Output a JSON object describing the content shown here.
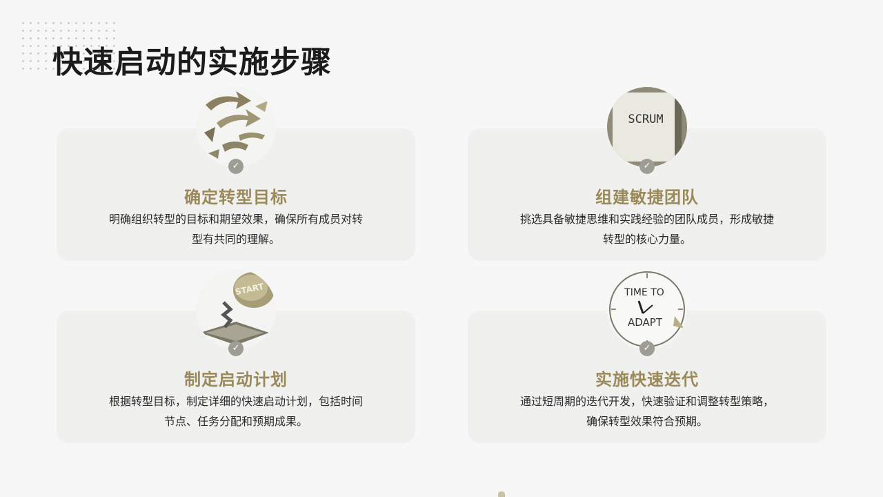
{
  "page": {
    "title": "快速启动的实施步骤"
  },
  "steps": [
    {
      "icon": "arrows-photo-icon",
      "title": "确定转型目标",
      "desc_line1": "明确组织转型的目标和期望效果，确保所有成员对转",
      "desc_line2": "型有共同的理解。"
    },
    {
      "icon": "scrum-note-photo-icon",
      "photo_text": "SCRUM",
      "title": "组建敏捷团队",
      "desc_line1": "挑选具备敏捷思维和实践经验的团队成员，形成敏捷",
      "desc_line2": "转型的核心力量。"
    },
    {
      "icon": "start-button-photo-icon",
      "photo_text": "START",
      "title": "制定启动计划",
      "desc_line1": "根据转型目标，制定详细的快速启动计划，包括时间",
      "desc_line2": "节点、任务分配和预期成果。"
    },
    {
      "icon": "clock-photo-icon",
      "photo_text_top": "TIME TO",
      "photo_text_bottom": "ADAPT",
      "title": "实施快速迭代",
      "desc_line1": "通过短周期的迭代开发，快速验证和调整转型策略，",
      "desc_line2": "确保转型效果符合预期。"
    }
  ],
  "check_glyph": "✓",
  "colors": {
    "accent": "#9a8a5a",
    "card_bg": "#f0f0ef",
    "check_bg": "#9d9d94"
  }
}
